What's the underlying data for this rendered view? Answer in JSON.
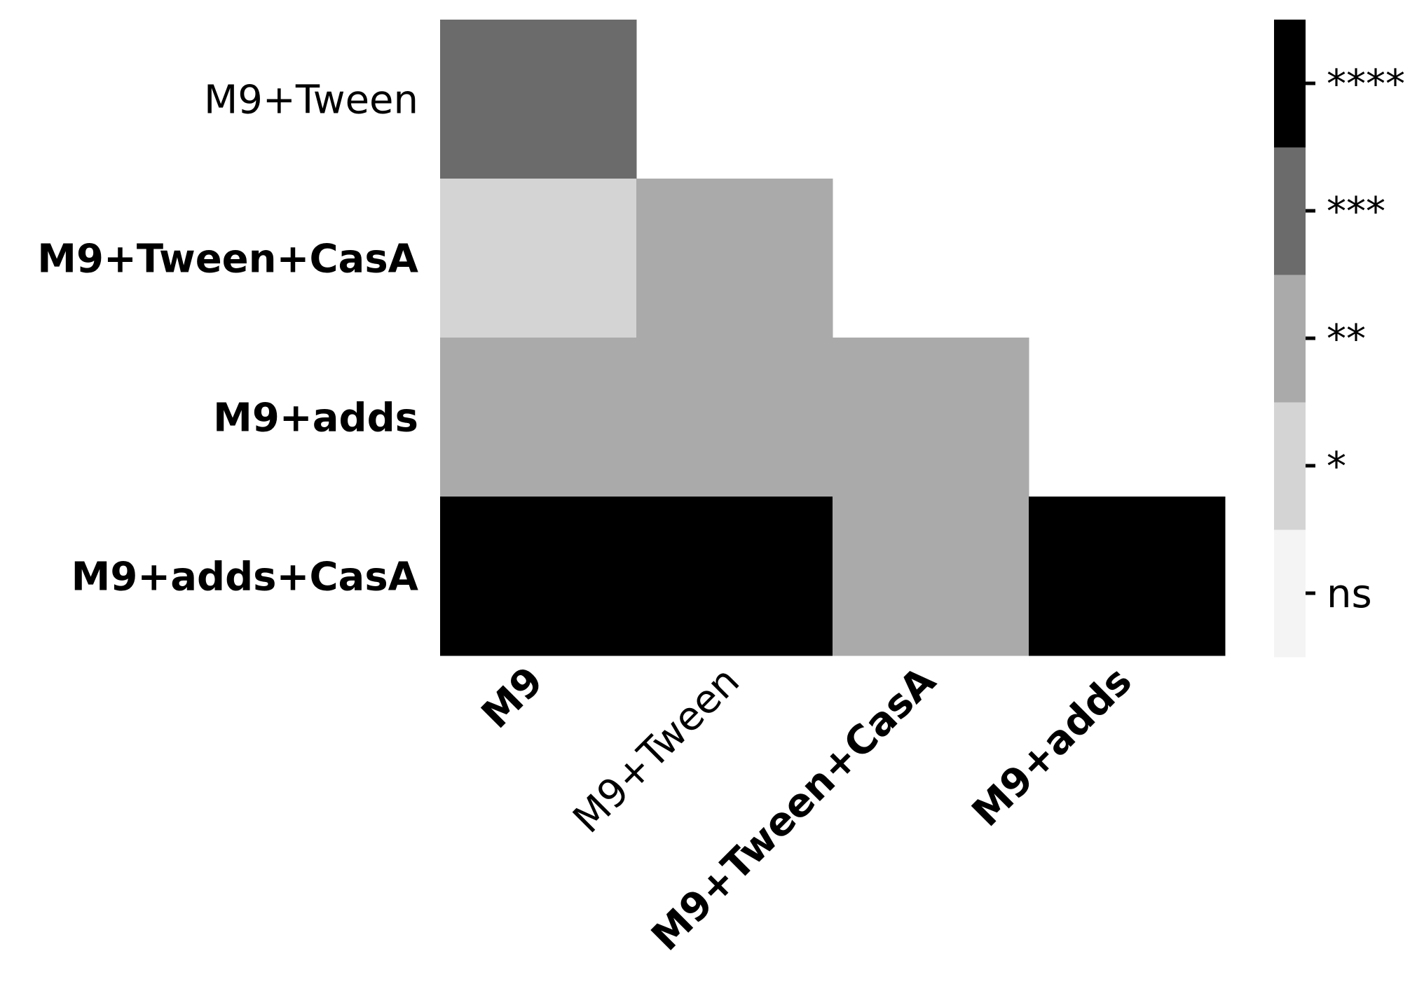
{
  "chart_data": {
    "type": "heatmap",
    "title": "",
    "xlabel": "",
    "ylabel": "",
    "x_categories": [
      {
        "label": "M9",
        "bold": true
      },
      {
        "label": "M9+Tween",
        "bold": false
      },
      {
        "label": "M9+Tween+CasA",
        "bold": true
      },
      {
        "label": "M9+adds",
        "bold": true
      }
    ],
    "y_categories": [
      {
        "label": "M9+Tween",
        "bold": false
      },
      {
        "label": "M9+Tween+CasA",
        "bold": true
      },
      {
        "label": "M9+adds",
        "bold": true
      },
      {
        "label": "M9+adds+CasA",
        "bold": true
      }
    ],
    "cells": [
      [
        "***",
        null,
        null,
        null
      ],
      [
        "*",
        "**",
        null,
        null
      ],
      [
        "**",
        "**",
        "**",
        null
      ],
      [
        "****",
        "****",
        "**",
        "****"
      ]
    ],
    "colorbar": {
      "levels": [
        "ns",
        "*",
        "**",
        "***",
        "****"
      ],
      "colors": [
        "#f4f4f4",
        "#d4d4d4",
        "#aaaaaa",
        "#6b6b6b",
        "#000000"
      ]
    },
    "grid": false,
    "legend": "colorbar-right"
  }
}
